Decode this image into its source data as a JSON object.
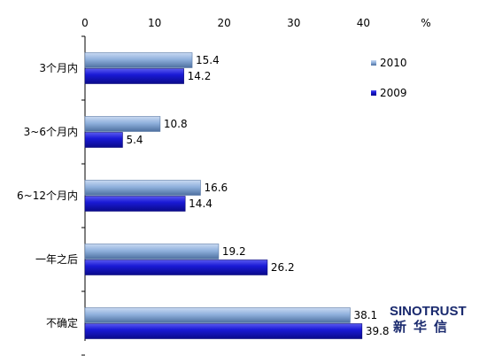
{
  "chart_data": {
    "type": "bar",
    "orientation": "horizontal",
    "x_ticks": [
      "0",
      "10",
      "20",
      "30",
      "40"
    ],
    "xlim": [
      0,
      45
    ],
    "unit_label": "%",
    "categories": [
      "3个月内",
      "3~6个月内",
      "6~12个月内",
      "一年之后",
      "不确定"
    ],
    "series": [
      {
        "name": "2010",
        "values": [
          15.4,
          10.8,
          16.6,
          19.2,
          38.1
        ],
        "value_labels": [
          "15.4",
          "10.8",
          "16.6",
          "19.2",
          "38.1"
        ]
      },
      {
        "name": "2009",
        "values": [
          14.2,
          5.4,
          14.4,
          26.2,
          39.8
        ],
        "value_labels": [
          "14.2",
          "5.4",
          "14.4",
          "26.2",
          "39.8"
        ]
      }
    ],
    "legend_position": "top-right",
    "grid": false,
    "colors": {
      "2010": "#8fb0dc",
      "2009": "#1a1ad6"
    }
  },
  "brand": {
    "name_en": "SINOTRUST",
    "name_cn": "新华信"
  }
}
